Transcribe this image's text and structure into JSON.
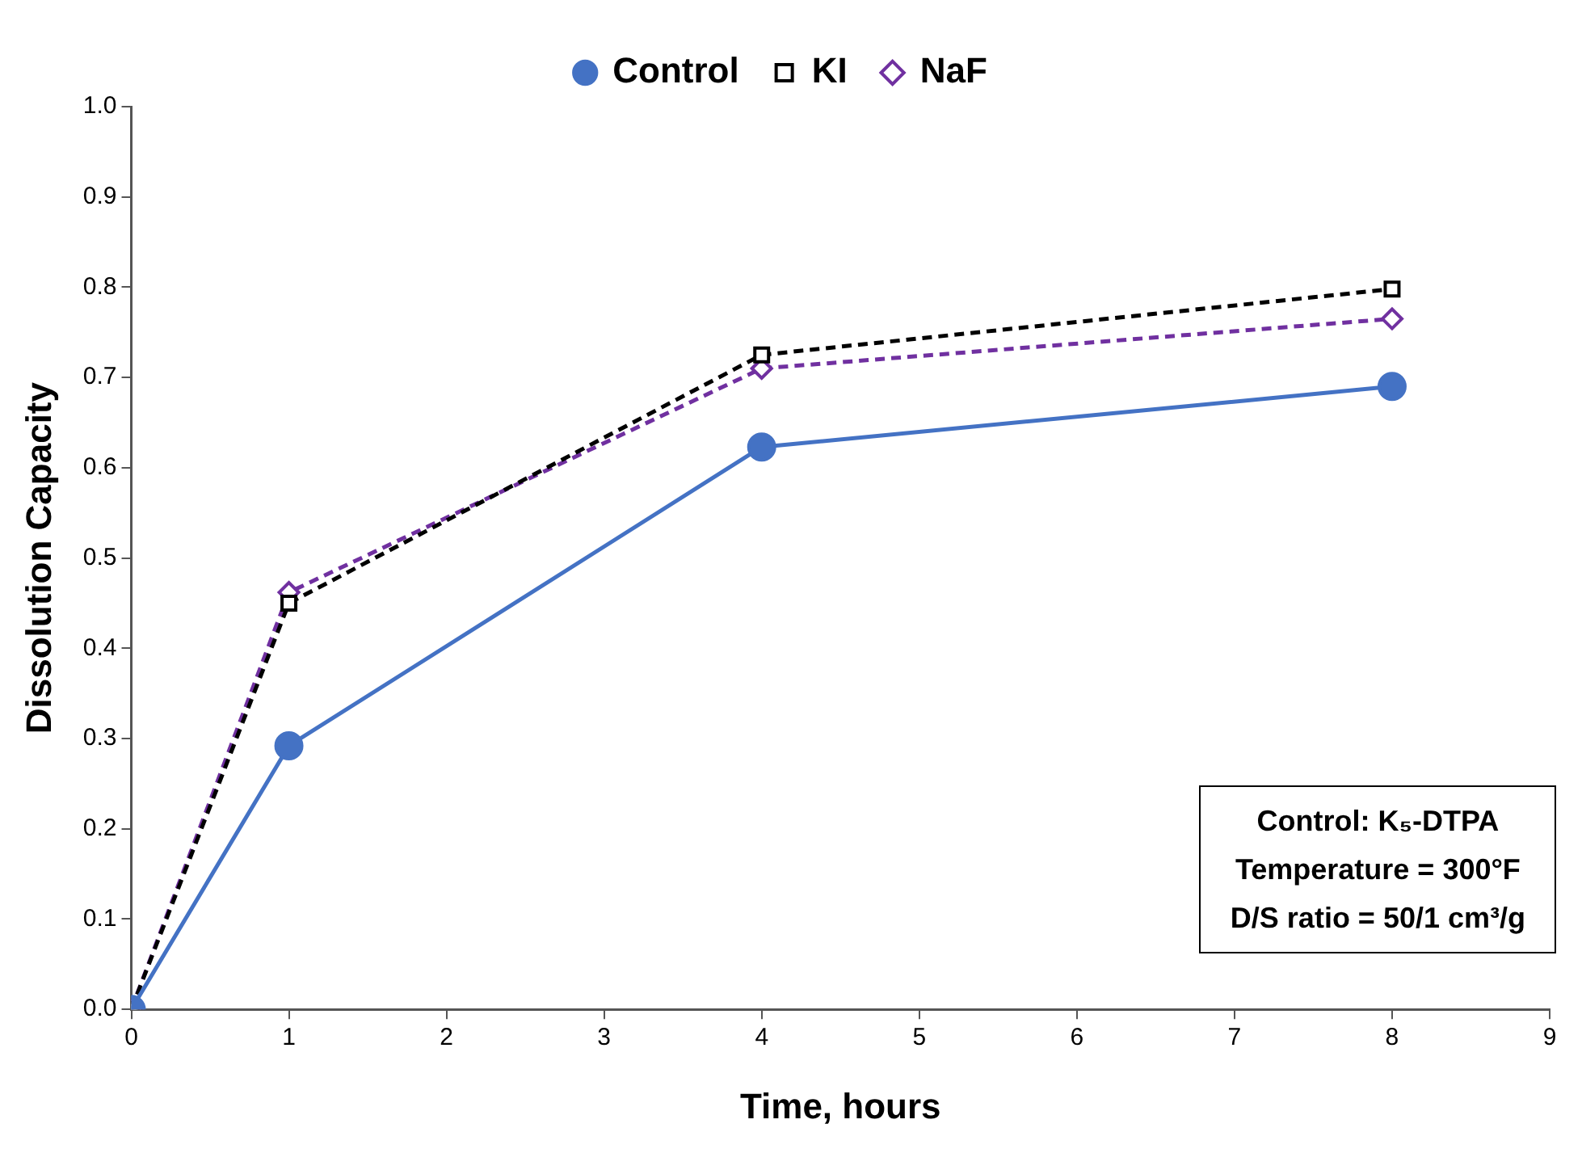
{
  "chart_data": {
    "type": "line",
    "xlabel": "Time, hours",
    "ylabel": "Dissolution Capacity",
    "x": [
      0,
      1,
      4,
      8
    ],
    "series": [
      {
        "name": "Control",
        "color": "#4472c4",
        "values": [
          0,
          0.292,
          0.623,
          0.69
        ],
        "marker": "circle",
        "line_style": "solid"
      },
      {
        "name": "KI",
        "color": "#000000",
        "values": [
          0,
          0.45,
          0.725,
          0.798
        ],
        "marker": "square",
        "line_style": "dashed"
      },
      {
        "name": "NaF",
        "color": "#7030a0",
        "values": [
          0,
          0.462,
          0.71,
          0.765
        ],
        "marker": "diamond",
        "line_style": "dashed"
      }
    ],
    "xlim": [
      0,
      9
    ],
    "xticks": [
      0,
      1,
      2,
      3,
      4,
      5,
      6,
      7,
      8,
      9
    ],
    "ylim": [
      0,
      1
    ],
    "yticks": [
      {
        "value": 0,
        "label": "0.0"
      },
      {
        "value": 0.1,
        "label": "0.1"
      },
      {
        "value": 0.2,
        "label": "0.2"
      },
      {
        "value": 0.3,
        "label": "0.3"
      },
      {
        "value": 0.4,
        "label": "0.4"
      },
      {
        "value": 0.5,
        "label": "0.5"
      },
      {
        "value": 0.6,
        "label": "0.6"
      },
      {
        "value": 0.7,
        "label": "0.7"
      },
      {
        "value": 0.8,
        "label": "0.8"
      },
      {
        "value": 0.9,
        "label": "0.9"
      },
      {
        "value": 1,
        "label": "1.0"
      }
    ],
    "annotations": [
      "Control: K₅-DTPA",
      "Temperature = 300°F",
      "D/S ratio = 50/1 cm³/g"
    ],
    "legend": "top",
    "grid": false
  }
}
